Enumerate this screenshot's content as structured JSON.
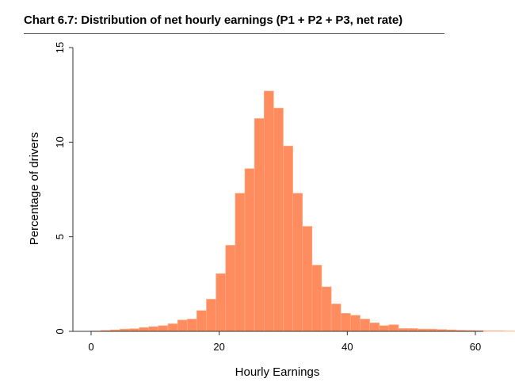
{
  "title": "Chart 6.7: Distribution of net hourly earnings (P1 + P2 + P3, net rate)",
  "colors": {
    "bar_fill": "#FF8C5F",
    "bar_stroke": "#FFB08A",
    "axis": "#333333"
  },
  "chart_data": {
    "type": "bar",
    "title": "Chart 6.7: Distribution of net hourly earnings (P1 + P2 + P3, net rate)",
    "xlabel": "Hourly Earnings",
    "ylabel": "Percentage of drivers",
    "xlim": [
      0,
      60
    ],
    "ylim": [
      0,
      15
    ],
    "xticks": [
      0,
      20,
      40,
      60
    ],
    "yticks": [
      0,
      5,
      10,
      15
    ],
    "grid": false,
    "bin_width": 1.5,
    "bin_start": 0,
    "values": [
      0.02,
      0.05,
      0.08,
      0.12,
      0.14,
      0.2,
      0.25,
      0.3,
      0.4,
      0.6,
      0.65,
      1.1,
      1.7,
      3.05,
      4.55,
      7.3,
      8.6,
      11.25,
      12.7,
      11.8,
      9.8,
      7.3,
      5.55,
      3.5,
      2.35,
      1.45,
      0.95,
      0.85,
      0.65,
      0.45,
      0.3,
      0.35,
      0.15,
      0.15,
      0.12,
      0.12,
      0.1,
      0.08,
      0.06,
      0.05,
      0.04,
      0.03,
      0.03,
      0.02,
      0.01,
      0.01
    ]
  }
}
